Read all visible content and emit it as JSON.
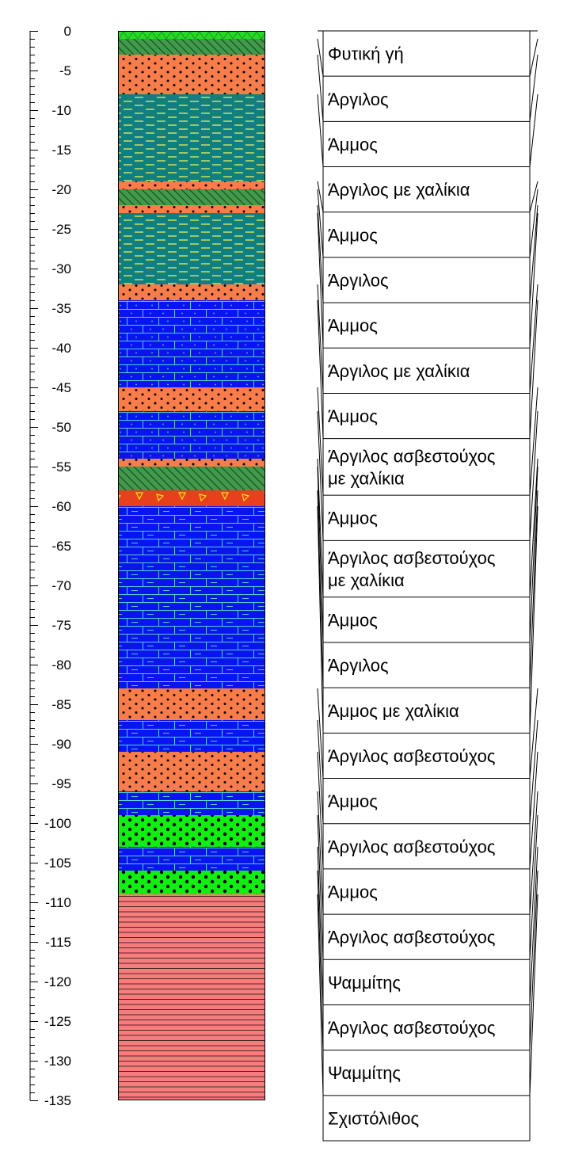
{
  "depth_axis": {
    "min": -135,
    "max": 0,
    "major_step": 5,
    "minor_step": 1,
    "tick_labels": [
      "0",
      "-5",
      "-10",
      "-15",
      "-20",
      "-25",
      "-30",
      "-35",
      "-40",
      "-45",
      "-50",
      "-55",
      "-60",
      "-65",
      "-70",
      "-75",
      "-80",
      "-85",
      "-90",
      "-95",
      "-100",
      "-105",
      "-110",
      "-115",
      "-120",
      "-125",
      "-130",
      "-135"
    ]
  },
  "column_layers": [
    {
      "top": 0,
      "bottom": -1,
      "fill": "#22dd22",
      "pattern": "topsoil",
      "pattern_color": "#2b8a2b"
    },
    {
      "top": -1,
      "bottom": -3,
      "fill": "#3f9a4a",
      "pattern": "hatch",
      "pattern_color": "#1c3d1c"
    },
    {
      "top": -3,
      "bottom": -8,
      "fill": "#f97d4a",
      "pattern": "dots",
      "pattern_color": "#000000"
    },
    {
      "top": -8,
      "bottom": -19,
      "fill": "#0f7f7f",
      "pattern": "dashes",
      "pattern_color": "#e8f060"
    },
    {
      "top": -19,
      "bottom": -20,
      "fill": "#f97d4a",
      "pattern": "dots",
      "pattern_color": "#000000"
    },
    {
      "top": -20,
      "bottom": -22,
      "fill": "#3f9a4a",
      "pattern": "hatch",
      "pattern_color": "#1c3d1c"
    },
    {
      "top": -22,
      "bottom": -23,
      "fill": "#f97d4a",
      "pattern": "dots",
      "pattern_color": "#000000"
    },
    {
      "top": -23,
      "bottom": -32,
      "fill": "#0f7f7f",
      "pattern": "dashes",
      "pattern_color": "#e8f060"
    },
    {
      "top": -32,
      "bottom": -34,
      "fill": "#f97d4a",
      "pattern": "dots",
      "pattern_color": "#000000"
    },
    {
      "top": -34,
      "bottom": -45,
      "fill": "#0a14ee",
      "pattern": "brick-dots",
      "pattern_color": "#4fd0d0"
    },
    {
      "top": -45,
      "bottom": -48,
      "fill": "#f97d4a",
      "pattern": "dots",
      "pattern_color": "#000000"
    },
    {
      "top": -48,
      "bottom": -54,
      "fill": "#0a14ee",
      "pattern": "brick-dots",
      "pattern_color": "#4fd0d0"
    },
    {
      "top": -54,
      "bottom": -55,
      "fill": "#f97d4a",
      "pattern": "dots",
      "pattern_color": "#000000"
    },
    {
      "top": -55,
      "bottom": -58,
      "fill": "#3f9a4a",
      "pattern": "hatch",
      "pattern_color": "#1c3d1c"
    },
    {
      "top": -58,
      "bottom": -60,
      "fill": "#e8401c",
      "pattern": "gravel",
      "pattern_color": "#f0e020"
    },
    {
      "top": -60,
      "bottom": -83,
      "fill": "#0a14ee",
      "pattern": "brick-dashes",
      "pattern_color": "#4fd0d0"
    },
    {
      "top": -83,
      "bottom": -87,
      "fill": "#f97d4a",
      "pattern": "dots",
      "pattern_color": "#000000"
    },
    {
      "top": -87,
      "bottom": -91,
      "fill": "#0a14ee",
      "pattern": "brick-dashes",
      "pattern_color": "#4fd0d0"
    },
    {
      "top": -91,
      "bottom": -96,
      "fill": "#f97d4a",
      "pattern": "dots",
      "pattern_color": "#000000"
    },
    {
      "top": -96,
      "bottom": -99,
      "fill": "#0a14ee",
      "pattern": "brick-dashes",
      "pattern_color": "#4fd0d0"
    },
    {
      "top": -99,
      "bottom": -103,
      "fill": "#11ee11",
      "pattern": "dots-big",
      "pattern_color": "#000000"
    },
    {
      "top": -103,
      "bottom": -106,
      "fill": "#0a14ee",
      "pattern": "brick-dashes",
      "pattern_color": "#4fd0d0"
    },
    {
      "top": -106,
      "bottom": -109,
      "fill": "#11ee11",
      "pattern": "dots-big",
      "pattern_color": "#000000"
    },
    {
      "top": -109,
      "bottom": -135,
      "fill": "#f77d7d",
      "pattern": "lines",
      "pattern_color": "#000000"
    }
  ],
  "descriptions": [
    {
      "text": [
        "Φυτική γή"
      ],
      "top": 0,
      "bottom": -1
    },
    {
      "text": [
        "Άργιλος"
      ],
      "top": -1,
      "bottom": -3
    },
    {
      "text": [
        "Άμμος"
      ],
      "top": -3,
      "bottom": -8
    },
    {
      "text": [
        "Άργιλος με χαλίκια"
      ],
      "top": -8,
      "bottom": -19
    },
    {
      "text": [
        "Άμμος"
      ],
      "top": -19,
      "bottom": -20
    },
    {
      "text": [
        "Άργιλος"
      ],
      "top": -20,
      "bottom": -22
    },
    {
      "text": [
        "Άμμος"
      ],
      "top": -22,
      "bottom": -23
    },
    {
      "text": [
        "Άργιλος με χαλίκια"
      ],
      "top": -23,
      "bottom": -32
    },
    {
      "text": [
        "Άμμος"
      ],
      "top": -32,
      "bottom": -34
    },
    {
      "text": [
        "Άργιλος ασβεστούχος",
        "με χαλίκια"
      ],
      "top": -34,
      "bottom": -45
    },
    {
      "text": [
        "Άμμος"
      ],
      "top": -45,
      "bottom": -48
    },
    {
      "text": [
        "Άργιλος ασβεστούχος",
        "με χαλίκια"
      ],
      "top": -48,
      "bottom": -54
    },
    {
      "text": [
        "Άμμος"
      ],
      "top": -54,
      "bottom": -55
    },
    {
      "text": [
        "Άργιλος"
      ],
      "top": -55,
      "bottom": -58
    },
    {
      "text": [
        "Άμμος με χαλίκια"
      ],
      "top": -58,
      "bottom": -60
    },
    {
      "text": [
        "Άργιλος ασβεστούχος"
      ],
      "top": -60,
      "bottom": -83
    },
    {
      "text": [
        "Άμμος"
      ],
      "top": -83,
      "bottom": -87
    },
    {
      "text": [
        "Άργιλος ασβεστούχος"
      ],
      "top": -87,
      "bottom": -91
    },
    {
      "text": [
        "Άμμος"
      ],
      "top": -91,
      "bottom": -96
    },
    {
      "text": [
        "Άργιλος ασβεστούχος"
      ],
      "top": -96,
      "bottom": -99
    },
    {
      "text": [
        "Ψαμμίτης"
      ],
      "top": -99,
      "bottom": -103
    },
    {
      "text": [
        "Άργιλος ασβεστούχος"
      ],
      "top": -103,
      "bottom": -106
    },
    {
      "text": [
        "Ψαμμίτης"
      ],
      "top": -106,
      "bottom": -109
    },
    {
      "text": [
        "Σχιστόλιθος"
      ],
      "top": -109,
      "bottom": -135
    }
  ]
}
